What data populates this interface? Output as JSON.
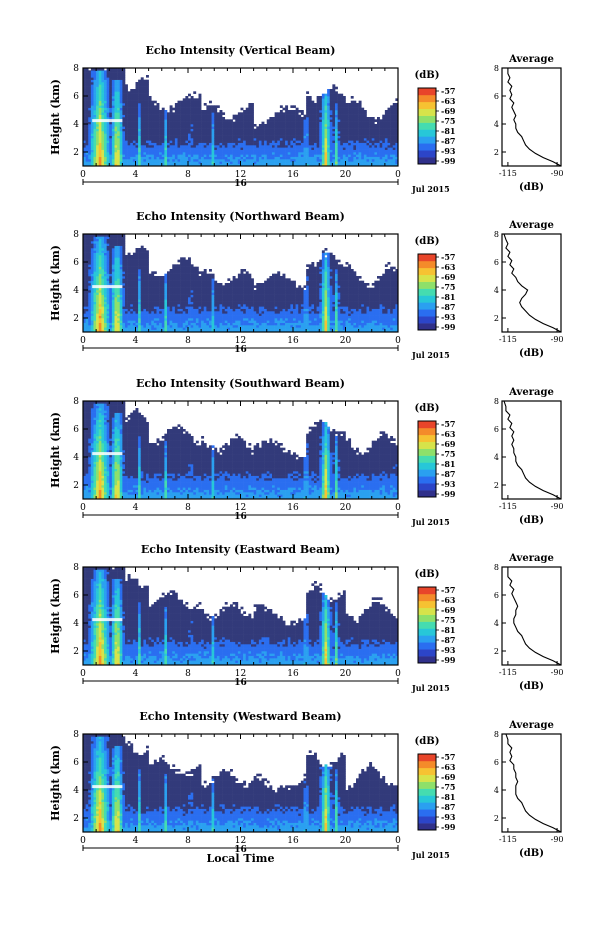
{
  "chart_data": [
    {
      "type": "heatmap",
      "title": "Echo Intensity (Vertical Beam)",
      "ylabel": "Height (km)",
      "xlim": [
        0,
        24
      ],
      "ylim": [
        1,
        8
      ],
      "x_ticks": [
        "0",
        "4",
        "8",
        "12",
        "16",
        "20",
        "0"
      ],
      "y_ticks": [
        "2",
        "4",
        "6",
        "8"
      ],
      "date_label": "16",
      "month_label": "Jul 2015",
      "colorbar": {
        "unit": "(dB)",
        "ticks": [
          "-57",
          "-63",
          "-69",
          "-75",
          "-81",
          "-87",
          "-93",
          "-99"
        ]
      },
      "profile": {
        "title": "Average",
        "xlabel": "(dB)",
        "x_ticks": [
          "-115",
          "-90"
        ],
        "xlim": [
          -118,
          -88
        ],
        "points": [
          [
            -88,
            1
          ],
          [
            -92,
            1.3
          ],
          [
            -97,
            1.6
          ],
          [
            -101,
            1.9
          ],
          [
            -104,
            2.2
          ],
          [
            -106,
            2.5
          ],
          [
            -107,
            2.8
          ],
          [
            -108,
            3.1
          ],
          [
            -110,
            3.4
          ],
          [
            -111,
            3.7
          ],
          [
            -111,
            4.0
          ],
          [
            -112,
            4.3
          ],
          [
            -111,
            4.6
          ],
          [
            -112,
            4.9
          ],
          [
            -113,
            5.2
          ],
          [
            -112,
            5.5
          ],
          [
            -114,
            5.8
          ],
          [
            -113,
            6.1
          ],
          [
            -114,
            6.4
          ],
          [
            -113,
            6.7
          ],
          [
            -115,
            7.0
          ],
          [
            -114,
            7.3
          ],
          [
            -115,
            7.6
          ],
          [
            -115,
            8.0
          ]
        ]
      }
    },
    {
      "type": "heatmap",
      "title": "Echo Intensity (Northward Beam)",
      "ylabel": "Height (km)",
      "xlim": [
        0,
        24
      ],
      "ylim": [
        1,
        8
      ],
      "x_ticks": [
        "0",
        "4",
        "8",
        "12",
        "16",
        "20",
        "0"
      ],
      "y_ticks": [
        "2",
        "4",
        "6",
        "8"
      ],
      "date_label": "16",
      "month_label": "Jul 2015",
      "colorbar": {
        "unit": "(dB)",
        "ticks": [
          "-57",
          "-63",
          "-69",
          "-75",
          "-81",
          "-87",
          "-93",
          "-99"
        ]
      },
      "profile": {
        "title": "Average",
        "xlabel": "(dB)",
        "x_ticks": [
          "-115",
          "-90"
        ],
        "xlim": [
          -118,
          -88
        ],
        "points": [
          [
            -88,
            1
          ],
          [
            -92,
            1.3
          ],
          [
            -97,
            1.6
          ],
          [
            -101,
            1.9
          ],
          [
            -104,
            2.2
          ],
          [
            -106,
            2.5
          ],
          [
            -108,
            2.8
          ],
          [
            -109,
            3.1
          ],
          [
            -108,
            3.4
          ],
          [
            -106,
            3.7
          ],
          [
            -105,
            4.0
          ],
          [
            -108,
            4.3
          ],
          [
            -110,
            4.6
          ],
          [
            -111,
            4.9
          ],
          [
            -113,
            5.2
          ],
          [
            -112,
            5.5
          ],
          [
            -114,
            5.8
          ],
          [
            -113,
            6.1
          ],
          [
            -115,
            6.4
          ],
          [
            -114,
            6.7
          ],
          [
            -116,
            7.0
          ],
          [
            -115,
            7.3
          ],
          [
            -116,
            7.6
          ],
          [
            -117,
            8.0
          ]
        ]
      }
    },
    {
      "type": "heatmap",
      "title": "Echo Intensity (Southward Beam)",
      "ylabel": "Height (km)",
      "xlim": [
        0,
        24
      ],
      "ylim": [
        1,
        8
      ],
      "x_ticks": [
        "0",
        "4",
        "8",
        "12",
        "16",
        "20",
        "0"
      ],
      "y_ticks": [
        "2",
        "4",
        "6",
        "8"
      ],
      "date_label": "16",
      "month_label": "Jul 2015",
      "colorbar": {
        "unit": "(dB)",
        "ticks": [
          "-57",
          "-63",
          "-69",
          "-75",
          "-81",
          "-87",
          "-93",
          "-99"
        ]
      },
      "profile": {
        "title": "Average",
        "xlabel": "(dB)",
        "x_ticks": [
          "-115",
          "-90"
        ],
        "xlim": [
          -118,
          -88
        ],
        "points": [
          [
            -88,
            1
          ],
          [
            -92,
            1.3
          ],
          [
            -97,
            1.6
          ],
          [
            -101,
            1.9
          ],
          [
            -104,
            2.2
          ],
          [
            -106,
            2.5
          ],
          [
            -107,
            2.8
          ],
          [
            -108,
            3.1
          ],
          [
            -110,
            3.4
          ],
          [
            -111,
            3.7
          ],
          [
            -111,
            4.0
          ],
          [
            -112,
            4.3
          ],
          [
            -112,
            4.6
          ],
          [
            -113,
            4.9
          ],
          [
            -112,
            5.2
          ],
          [
            -113,
            5.5
          ],
          [
            -112,
            5.8
          ],
          [
            -114,
            6.1
          ],
          [
            -113,
            6.4
          ],
          [
            -115,
            6.7
          ],
          [
            -114,
            7.0
          ],
          [
            -116,
            7.3
          ],
          [
            -116,
            7.6
          ],
          [
            -117,
            8.0
          ]
        ]
      }
    },
    {
      "type": "heatmap",
      "title": "Echo Intensity (Eastward Beam)",
      "ylabel": "Height (km)",
      "xlim": [
        0,
        24
      ],
      "ylim": [
        1,
        8
      ],
      "x_ticks": [
        "0",
        "4",
        "8",
        "12",
        "16",
        "20",
        "0"
      ],
      "y_ticks": [
        "2",
        "4",
        "6",
        "8"
      ],
      "date_label": "16",
      "month_label": "Jul 2015",
      "colorbar": {
        "unit": "(dB)",
        "ticks": [
          "-57",
          "-63",
          "-69",
          "-75",
          "-81",
          "-87",
          "-93",
          "-99"
        ]
      },
      "profile": {
        "title": "Average",
        "xlabel": "(dB)",
        "x_ticks": [
          "-115",
          "-90"
        ],
        "xlim": [
          -118,
          -88
        ],
        "points": [
          [
            -88,
            1
          ],
          [
            -92,
            1.3
          ],
          [
            -97,
            1.6
          ],
          [
            -101,
            1.9
          ],
          [
            -104,
            2.2
          ],
          [
            -106,
            2.5
          ],
          [
            -107,
            2.8
          ],
          [
            -108,
            3.1
          ],
          [
            -110,
            3.4
          ],
          [
            -111,
            3.7
          ],
          [
            -112,
            4.0
          ],
          [
            -112,
            4.3
          ],
          [
            -111,
            4.6
          ],
          [
            -111,
            4.9
          ],
          [
            -110,
            5.2
          ],
          [
            -111,
            5.5
          ],
          [
            -112,
            5.8
          ],
          [
            -113,
            6.1
          ],
          [
            -112,
            6.4
          ],
          [
            -114,
            6.7
          ],
          [
            -113,
            7.0
          ],
          [
            -115,
            7.3
          ],
          [
            -115,
            7.6
          ],
          [
            -115,
            8.0
          ]
        ]
      }
    },
    {
      "type": "heatmap",
      "title": "Echo Intensity (Westward Beam)",
      "ylabel": "Height (km)",
      "xlim": [
        0,
        24
      ],
      "ylim": [
        1,
        8
      ],
      "x_ticks": [
        "0",
        "4",
        "8",
        "12",
        "16",
        "20",
        "0"
      ],
      "y_ticks": [
        "2",
        "4",
        "6",
        "8"
      ],
      "date_label": "16",
      "month_label": "Jul 2015",
      "xlabel": "Local Time",
      "colorbar": {
        "unit": "(dB)",
        "ticks": [
          "-57",
          "-63",
          "-69",
          "-75",
          "-81",
          "-87",
          "-93",
          "-99"
        ]
      },
      "profile": {
        "title": "Average",
        "xlabel": "(dB)",
        "x_ticks": [
          "-115",
          "-90"
        ],
        "xlim": [
          -118,
          -88
        ],
        "points": [
          [
            -88,
            1
          ],
          [
            -92,
            1.3
          ],
          [
            -97,
            1.6
          ],
          [
            -101,
            1.9
          ],
          [
            -104,
            2.2
          ],
          [
            -106,
            2.5
          ],
          [
            -107,
            2.8
          ],
          [
            -108,
            3.1
          ],
          [
            -110,
            3.4
          ],
          [
            -111,
            3.7
          ],
          [
            -111,
            4.0
          ],
          [
            -111,
            4.3
          ],
          [
            -110,
            4.6
          ],
          [
            -111,
            4.9
          ],
          [
            -111,
            5.2
          ],
          [
            -112,
            5.5
          ],
          [
            -112,
            5.8
          ],
          [
            -114,
            6.1
          ],
          [
            -113,
            6.4
          ],
          [
            -114,
            6.7
          ],
          [
            -113,
            7.0
          ],
          [
            -115,
            7.3
          ],
          [
            -115,
            7.6
          ],
          [
            -116,
            8.0
          ]
        ]
      }
    }
  ],
  "colors": {
    "colormap": [
      "#30308a",
      "#2c45c8",
      "#2a6ef0",
      "#2aa0f0",
      "#27c7d8",
      "#45dcb0",
      "#8ee06a",
      "#d7e34a",
      "#f6c232",
      "#f48b2a",
      "#e8452a"
    ],
    "background_fill": "#323a7a"
  }
}
